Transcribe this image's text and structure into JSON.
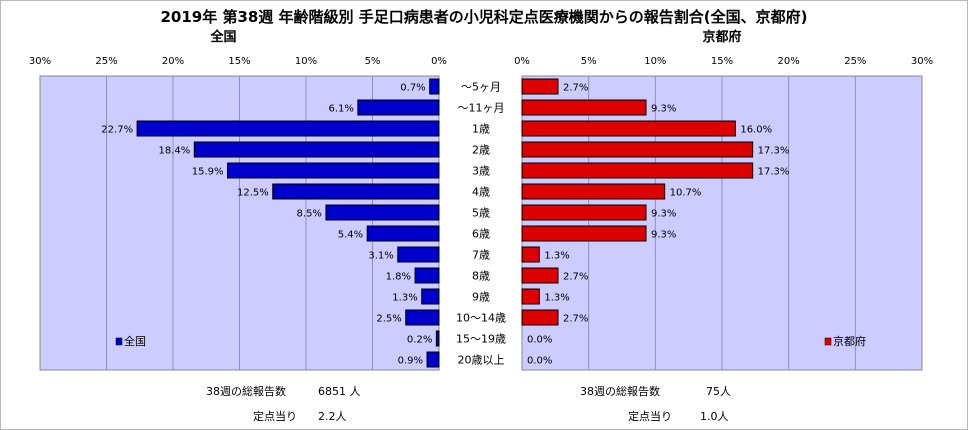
{
  "chart_data": {
    "type": "bar",
    "title": "2019年 第38週 年齢階級別 手足口病患者の小児科定点医療機関からの報告割合(全国、京都府)",
    "categories": [
      "～5ヶ月",
      "～11ヶ月",
      "1歳",
      "2歳",
      "3歳",
      "4歳",
      "5歳",
      "6歳",
      "7歳",
      "8歳",
      "9歳",
      "10～14歳",
      "15～19歳",
      "20歳以上"
    ],
    "series": [
      {
        "name": "全国",
        "panel_title": "全国",
        "legend": "全国",
        "color": "#0000cc",
        "values": [
          0.7,
          6.1,
          22.7,
          18.4,
          15.9,
          12.5,
          8.5,
          5.4,
          3.1,
          1.8,
          1.3,
          2.5,
          0.2,
          0.9
        ],
        "labels": [
          "0.7%",
          "6.1%",
          "22.7%",
          "18.4%",
          "15.9%",
          "12.5%",
          "8.5%",
          "5.4%",
          "3.1%",
          "1.8%",
          "1.3%",
          "2.5%",
          "0.2%",
          "0.9%"
        ],
        "summary": {
          "total_label": "38週の総報告数",
          "total_value": "6851 人",
          "per_label": "定点当り",
          "per_value": "2.2人"
        }
      },
      {
        "name": "京都府",
        "panel_title": "京都府",
        "legend": "京都府",
        "color": "#dd0000",
        "values": [
          2.7,
          9.3,
          16.0,
          17.3,
          17.3,
          10.7,
          9.3,
          9.3,
          1.3,
          2.7,
          1.3,
          2.7,
          0.0,
          0.0
        ],
        "labels": [
          "2.7%",
          "9.3%",
          "16.0%",
          "17.3%",
          "17.3%",
          "10.7%",
          "9.3%",
          "9.3%",
          "1.3%",
          "2.7%",
          "1.3%",
          "2.7%",
          "0.0%",
          "0.0%"
        ],
        "summary": {
          "total_label": "38週の総報告数",
          "total_value": "75人",
          "per_label": "定点当り",
          "per_value": "1.0人"
        }
      }
    ],
    "xlim": [
      0,
      30
    ],
    "ticks": [
      "0%",
      "5%",
      "10%",
      "15%",
      "20%",
      "25%",
      "30%"
    ],
    "tick_values": [
      0,
      5,
      10,
      15,
      20,
      25,
      30
    ],
    "grid": true,
    "plot_background": "#ccccff",
    "legend_placement": "bottom-left / bottom-right"
  }
}
